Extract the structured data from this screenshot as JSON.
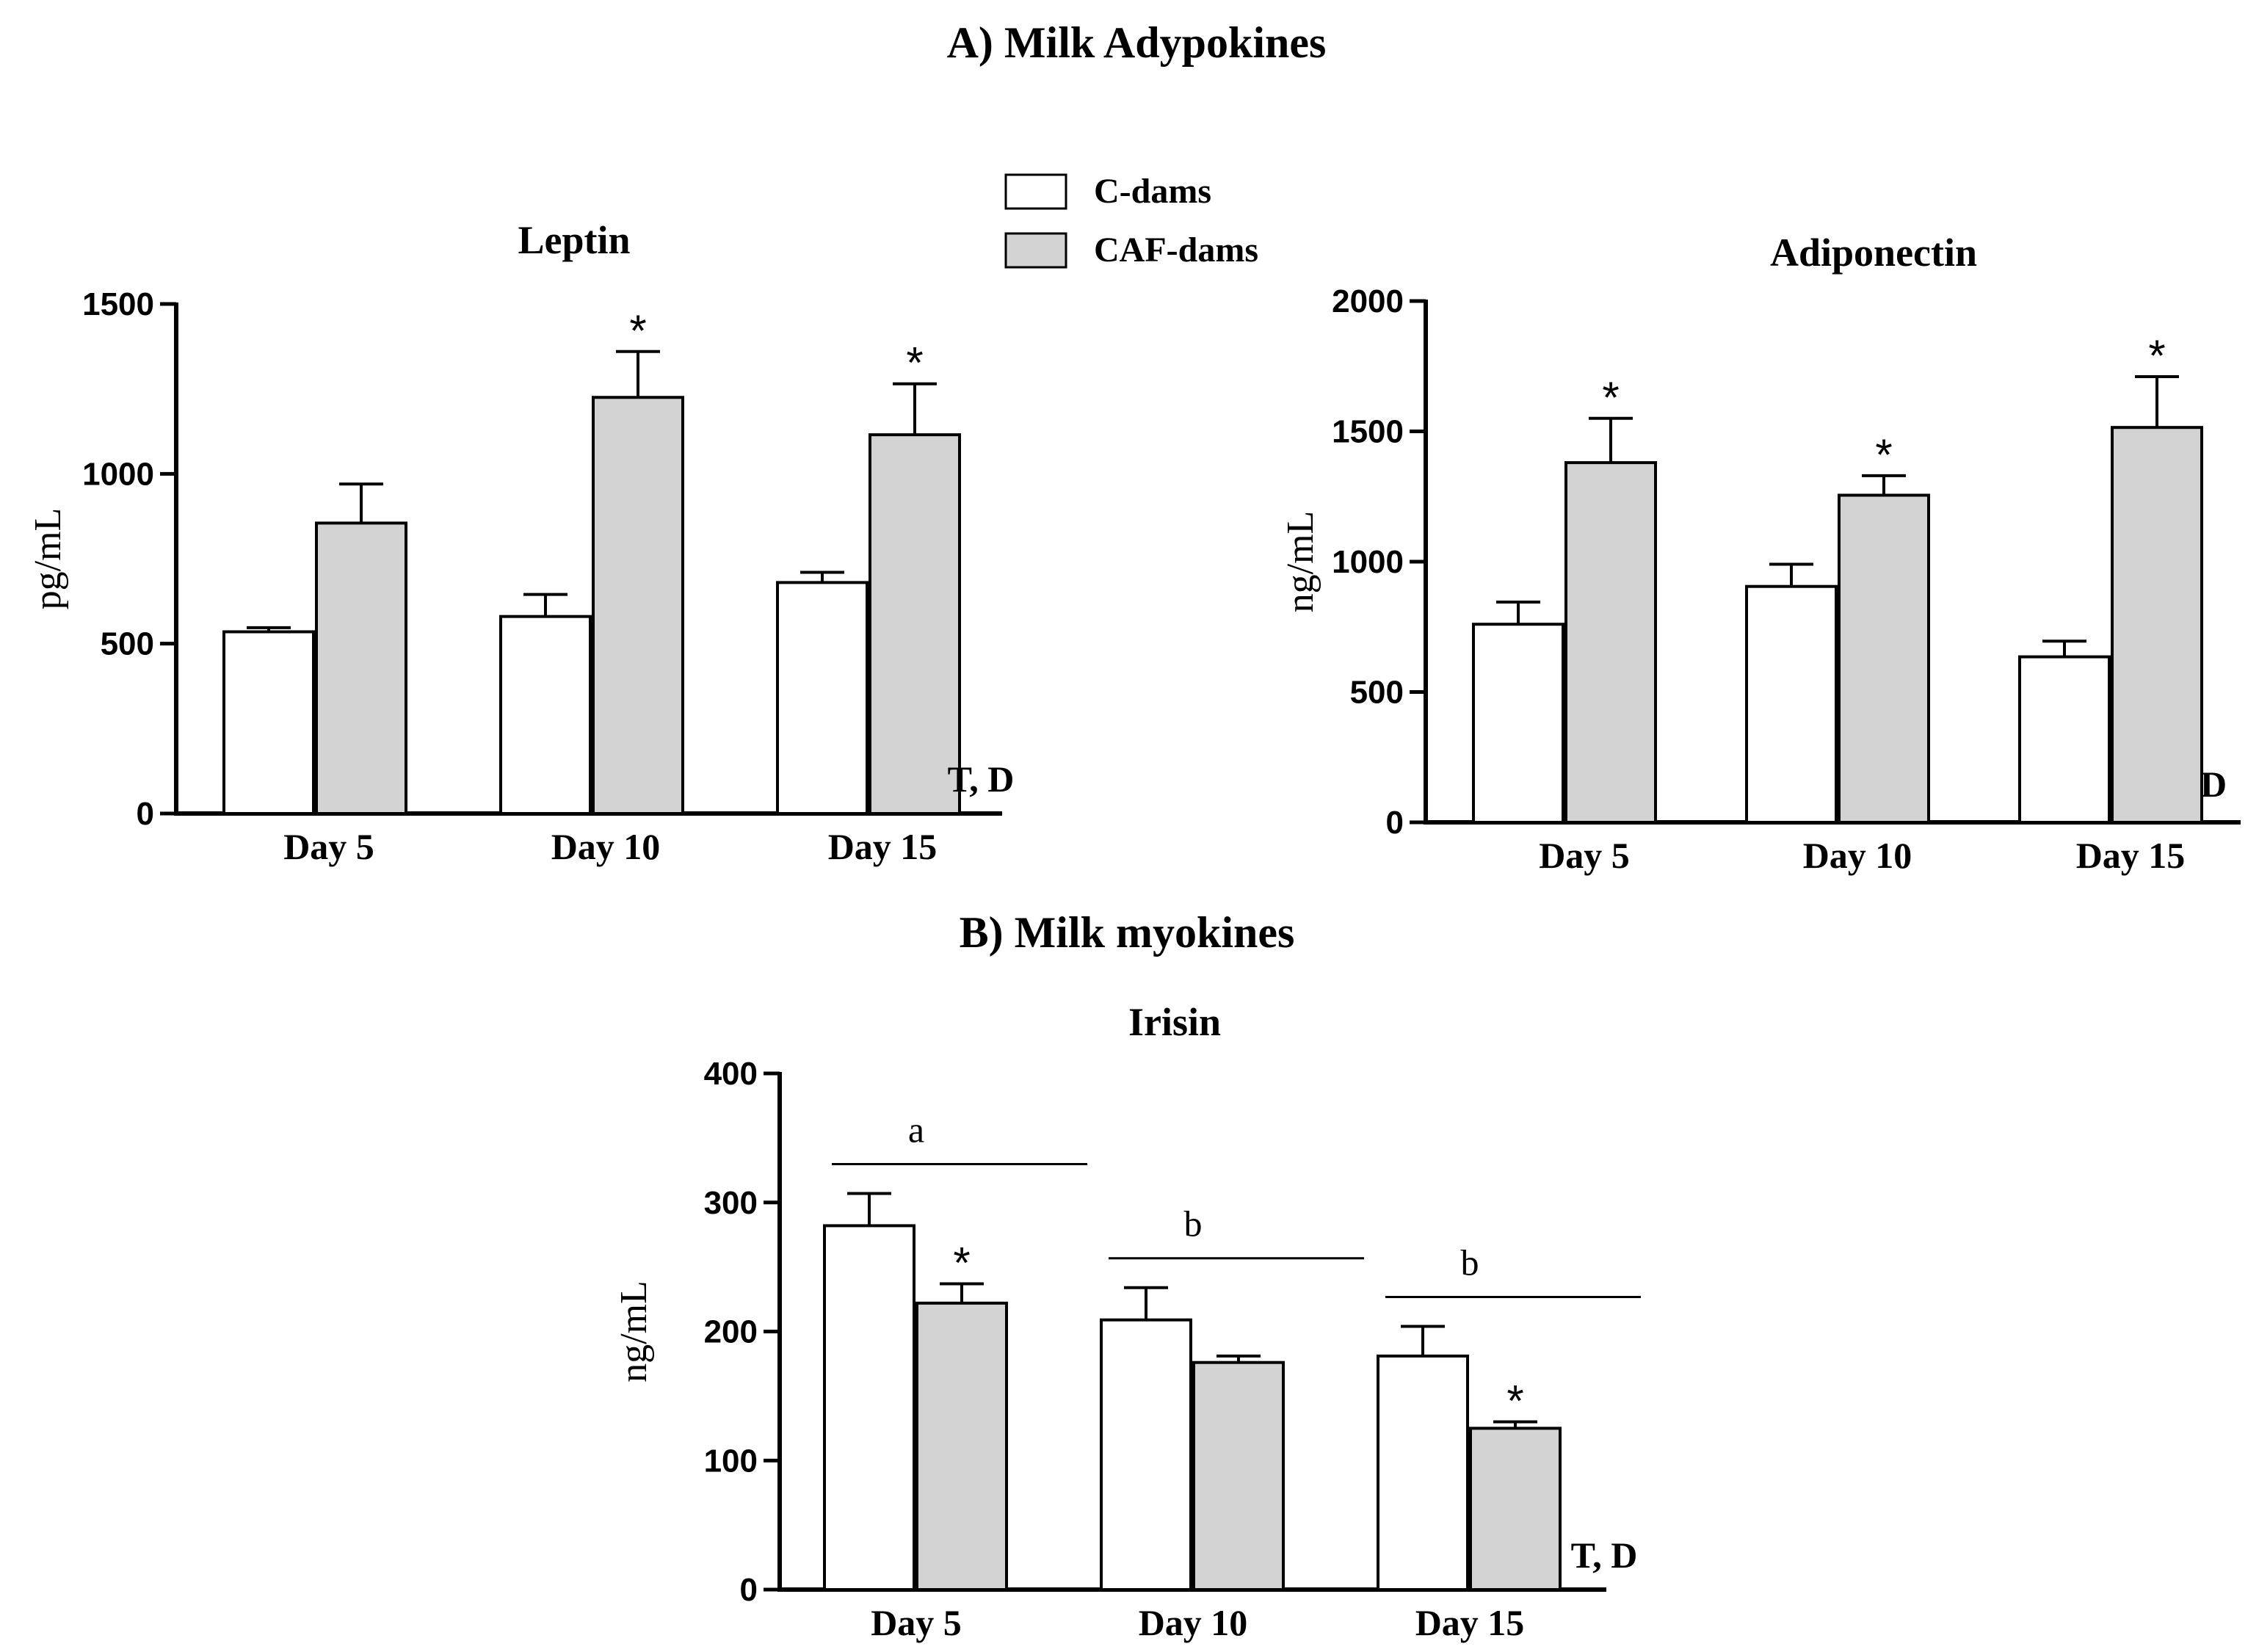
{
  "section_titles": {
    "a": "A) Milk Adypokines",
    "b": "B) Milk myokines"
  },
  "legend": {
    "items": [
      {
        "label": "C-dams",
        "color": "#ffffff"
      },
      {
        "label": "CAF-dams",
        "color": "#d3d3d3"
      }
    ]
  },
  "chart_data": [
    {
      "id": "leptin",
      "type": "bar",
      "title": "Leptin",
      "ylabel": "pg/mL",
      "xlabel": "",
      "ylim": [
        0,
        1500
      ],
      "yticks": [
        0,
        500,
        1000,
        1500
      ],
      "categories": [
        "Day 5",
        "Day 10",
        "Day 15"
      ],
      "series": [
        {
          "name": "C-dams",
          "color": "#ffffff",
          "values": [
            535,
            580,
            680
          ],
          "errors": [
            12,
            65,
            30
          ],
          "stars": [
            false,
            false,
            false
          ]
        },
        {
          "name": "CAF-dams",
          "color": "#d3d3d3",
          "values": [
            855,
            1225,
            1115
          ],
          "errors": [
            115,
            135,
            150
          ],
          "stars": [
            false,
            true,
            true
          ]
        }
      ],
      "significance": "T, D",
      "group_letters": []
    },
    {
      "id": "adiponectin",
      "type": "bar",
      "title": "Adiponectin",
      "ylabel": "ng/mL",
      "xlabel": "",
      "ylim": [
        0,
        2000
      ],
      "yticks": [
        0,
        500,
        1000,
        1500,
        2000
      ],
      "categories": [
        "Day 5",
        "Day 10",
        "Day 15"
      ],
      "series": [
        {
          "name": "C-dams",
          "color": "#ffffff",
          "values": [
            760,
            905,
            635
          ],
          "errors": [
            85,
            85,
            60
          ],
          "stars": [
            false,
            false,
            false
          ]
        },
        {
          "name": "CAF-dams",
          "color": "#d3d3d3",
          "values": [
            1380,
            1255,
            1515
          ],
          "errors": [
            170,
            75,
            195
          ],
          "stars": [
            true,
            true,
            true
          ]
        }
      ],
      "significance": "D",
      "group_letters": []
    },
    {
      "id": "irisin",
      "type": "bar",
      "title": "Irisin",
      "ylabel": "ng/mL",
      "xlabel": "",
      "ylim": [
        0,
        400
      ],
      "yticks": [
        0,
        100,
        200,
        300,
        400
      ],
      "categories": [
        "Day 5",
        "Day 10",
        "Day 15"
      ],
      "series": [
        {
          "name": "C-dams",
          "color": "#ffffff",
          "values": [
            282,
            209,
            181
          ],
          "errors": [
            25,
            25,
            23
          ],
          "stars": [
            false,
            false,
            false
          ]
        },
        {
          "name": "CAF-dams",
          "color": "#d3d3d3",
          "values": [
            222,
            176,
            125
          ],
          "errors": [
            15,
            5,
            5
          ],
          "stars": [
            true,
            false,
            true
          ]
        }
      ],
      "significance": "T, D",
      "group_letters": [
        "a",
        "b",
        "b"
      ]
    }
  ]
}
